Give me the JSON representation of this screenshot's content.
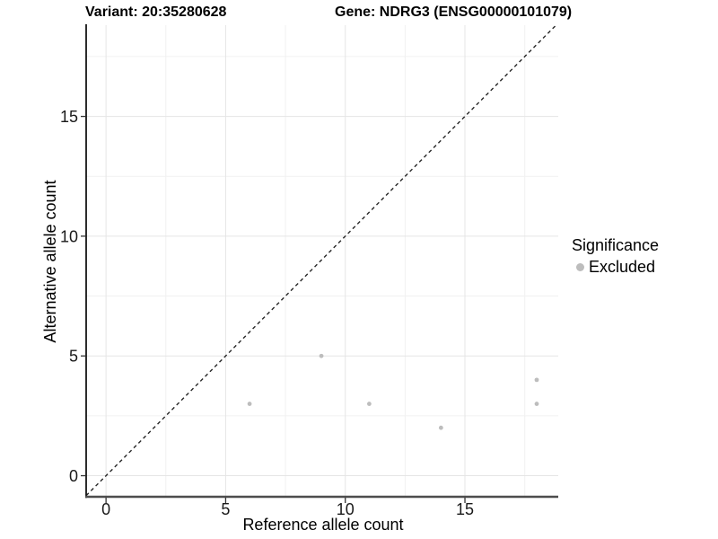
{
  "titles": {
    "variant": "Variant: 20:35280628",
    "gene": "Gene: NDRG3 (ENSG00000101079)"
  },
  "chart_data": {
    "type": "scatter",
    "xlabel": "Reference allele count",
    "ylabel": "Alternative allele count",
    "x_ticks": [
      0,
      5,
      10,
      15
    ],
    "y_ticks": [
      0,
      5,
      10,
      15
    ],
    "x_minor_gridlines": [
      2.5,
      7.5,
      12.5,
      17.5
    ],
    "y_minor_gridlines": [
      2.5,
      7.5,
      12.5,
      17.5
    ],
    "xlim": [
      -0.83,
      18.9
    ],
    "ylim": [
      -0.88,
      18.81
    ],
    "series": [
      {
        "name": "Excluded",
        "color": "#bdbdbd",
        "points": [
          {
            "x": 6,
            "y": 3
          },
          {
            "x": 9,
            "y": 5
          },
          {
            "x": 11,
            "y": 3
          },
          {
            "x": 14,
            "y": 2
          },
          {
            "x": 18,
            "y": 4
          },
          {
            "x": 18,
            "y": 3
          }
        ]
      }
    ],
    "reference_line": {
      "slope": 1,
      "intercept": 0,
      "linetype": "dashed",
      "color": "#262626"
    },
    "grid": {
      "major_color": "#e5e5e5",
      "minor_color": "#f1f1f1"
    },
    "legend": {
      "title": "Significance",
      "position": "right",
      "items": [
        {
          "label": "Excluded",
          "color": "#bdbdbd"
        }
      ]
    }
  }
}
